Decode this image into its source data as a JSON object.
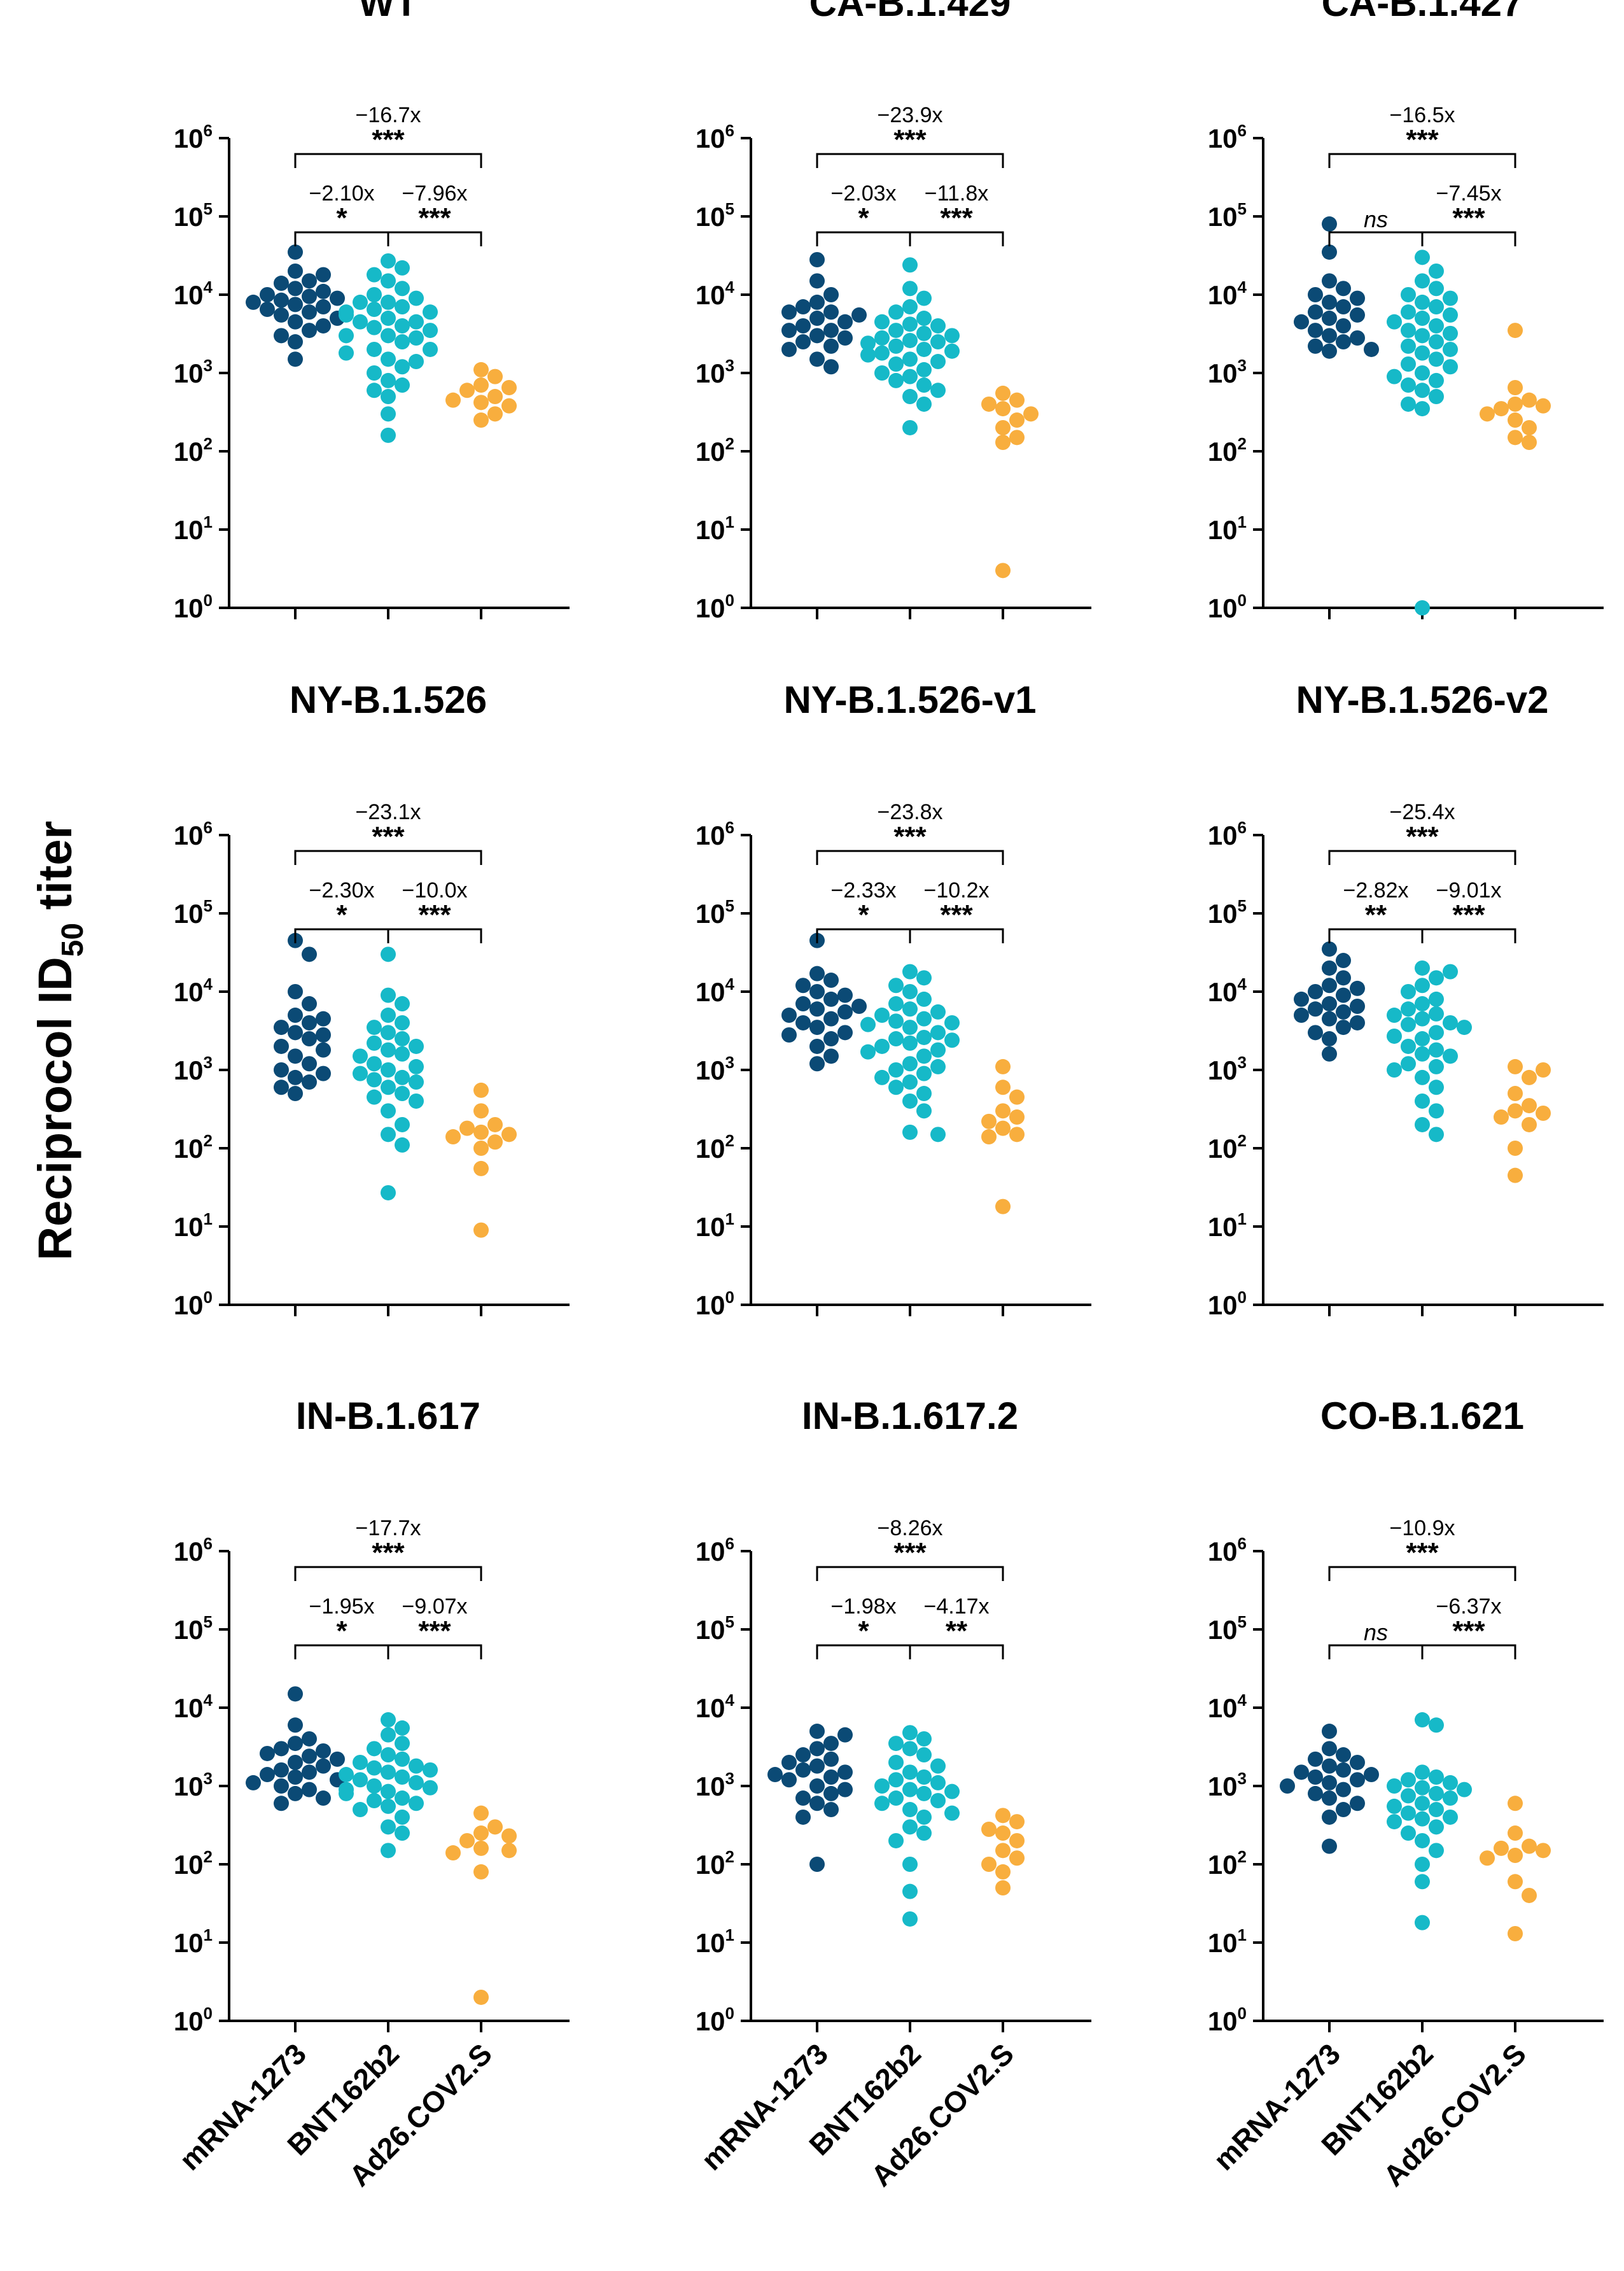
{
  "y_axis_title": "Reciprocol ID",
  "y_axis_title_sub": "50",
  "y_axis_title_tail": " titer",
  "groups": [
    "mRNA-1273",
    "BNT162b2",
    "Ad26.COV2.S"
  ],
  "group_colors": [
    "#0B4A75",
    "#16B9C8",
    "#F8AE3E"
  ],
  "tick_base": "10",
  "tick_exponents": [
    "0",
    "1",
    "2",
    "3",
    "4",
    "5",
    "6"
  ],
  "chart_data": [
    {
      "type": "scatter",
      "title": "WT",
      "ylim": [
        1,
        1000000
      ],
      "yscale": "log",
      "comparisons": [
        {
          "pair": [
            0,
            1
          ],
          "fold": "−2.10x",
          "sig": "*"
        },
        {
          "pair": [
            1,
            2
          ],
          "fold": "−7.96x",
          "sig": "***"
        },
        {
          "pair": [
            0,
            2
          ],
          "fold": "−16.7x",
          "sig": "***"
        }
      ],
      "series": [
        {
          "name": "mRNA-1273",
          "values": [
            35000,
            20000,
            18000,
            15000,
            14000,
            12000,
            11000,
            10000,
            9500,
            9000,
            8500,
            8000,
            7500,
            7000,
            6500,
            6000,
            5500,
            5000,
            4500,
            4000,
            3500,
            3000,
            2500,
            1500
          ]
        },
        {
          "name": "BNT162b2",
          "values": [
            27000,
            22000,
            18000,
            15000,
            12000,
            10000,
            9000,
            8000,
            7000,
            6500,
            6000,
            5500,
            5000,
            4500,
            4000,
            3800,
            3500,
            3000,
            2800,
            2500,
            2000,
            1800,
            1500,
            1200,
            1000,
            800,
            700,
            600,
            500,
            300,
            160,
            8000,
            6000,
            4500,
            3000,
            2000,
            1400
          ]
        },
        {
          "name": "Ad26.COV2.S",
          "values": [
            1100,
            900,
            700,
            650,
            600,
            500,
            450,
            420,
            380,
            300,
            250
          ]
        }
      ]
    },
    {
      "type": "scatter",
      "title": "CA-B.1.429",
      "ylim": [
        1,
        1000000
      ],
      "yscale": "log",
      "comparisons": [
        {
          "pair": [
            0,
            1
          ],
          "fold": "−2.03x",
          "sig": "*"
        },
        {
          "pair": [
            1,
            2
          ],
          "fold": "−11.8x",
          "sig": "***"
        },
        {
          "pair": [
            0,
            2
          ],
          "fold": "−23.9x",
          "sig": "***"
        }
      ],
      "series": [
        {
          "name": "mRNA-1273",
          "values": [
            28000,
            15000,
            10000,
            8000,
            7000,
            6000,
            5500,
            5000,
            4500,
            4000,
            3500,
            3000,
            2800,
            2500,
            2000,
            1500,
            1200,
            6000,
            3500,
            2200
          ]
        },
        {
          "name": "BNT162b2",
          "values": [
            24000,
            12000,
            9000,
            7000,
            6000,
            5000,
            4500,
            4000,
            3500,
            3000,
            2800,
            2500,
            2200,
            2000,
            1800,
            1500,
            1300,
            1100,
            900,
            800,
            700,
            600,
            500,
            400,
            200,
            3200,
            2600,
            1900,
            1400,
            1000,
            4200,
            2400,
            1700
          ]
        },
        {
          "name": "Ad26.COV2.S",
          "values": [
            550,
            450,
            400,
            350,
            300,
            250,
            200,
            150,
            130,
            3
          ]
        }
      ]
    },
    {
      "type": "scatter",
      "title": "CA-B.1.427",
      "ylim": [
        1,
        1000000
      ],
      "yscale": "log",
      "comparisons": [
        {
          "pair": [
            0,
            1
          ],
          "fold": "",
          "sig": "ns"
        },
        {
          "pair": [
            1,
            2
          ],
          "fold": "−7.45x",
          "sig": "***"
        },
        {
          "pair": [
            0,
            2
          ],
          "fold": "−16.5x",
          "sig": "***"
        }
      ],
      "series": [
        {
          "name": "mRNA-1273",
          "values": [
            80000,
            35000,
            15000,
            12000,
            10000,
            9000,
            8000,
            7000,
            6000,
            5500,
            5000,
            4500,
            4000,
            3500,
            3000,
            2800,
            2500,
            2200,
            2000,
            1900
          ]
        },
        {
          "name": "BNT162b2",
          "values": [
            30000,
            20000,
            15000,
            12000,
            10000,
            8000,
            7000,
            6000,
            5000,
            4500,
            4000,
            3500,
            3000,
            2500,
            2000,
            1800,
            1500,
            1200,
            1000,
            800,
            700,
            600,
            500,
            400,
            350,
            1,
            9000,
            5500,
            3200,
            2200,
            1300,
            900
          ]
        },
        {
          "name": "Ad26.COV2.S",
          "values": [
            3500,
            650,
            450,
            400,
            380,
            350,
            300,
            250,
            200,
            150,
            130
          ]
        }
      ]
    },
    {
      "type": "scatter",
      "title": "NY-B.1.526",
      "ylim": [
        1,
        1000000
      ],
      "yscale": "log",
      "comparisons": [
        {
          "pair": [
            0,
            1
          ],
          "fold": "−2.30x",
          "sig": "*"
        },
        {
          "pair": [
            1,
            2
          ],
          "fold": "−10.0x",
          "sig": "***"
        },
        {
          "pair": [
            0,
            2
          ],
          "fold": "−23.1x",
          "sig": "***"
        }
      ],
      "series": [
        {
          "name": "mRNA-1273",
          "values": [
            45000,
            30000,
            10000,
            7000,
            5000,
            4500,
            4000,
            3500,
            3000,
            2800,
            2500,
            2000,
            1800,
            1500,
            1200,
            1000,
            900,
            800,
            700,
            600,
            500
          ]
        },
        {
          "name": "BNT162b2",
          "values": [
            30000,
            9000,
            7000,
            5000,
            4000,
            3500,
            3000,
            2500,
            2000,
            1800,
            1500,
            1200,
            1000,
            900,
            800,
            700,
            600,
            500,
            400,
            300,
            200,
            150,
            110,
            27,
            2200,
            1600,
            1100,
            750,
            450
          ]
        },
        {
          "name": "Ad26.COV2.S",
          "values": [
            550,
            300,
            200,
            180,
            160,
            150,
            140,
            120,
            100,
            55,
            9
          ]
        }
      ]
    },
    {
      "type": "scatter",
      "title": "NY-B.1.526-v1",
      "ylim": [
        1,
        1000000
      ],
      "yscale": "log",
      "comparisons": [
        {
          "pair": [
            0,
            1
          ],
          "fold": "−2.33x",
          "sig": "*"
        },
        {
          "pair": [
            1,
            2
          ],
          "fold": "−10.2x",
          "sig": "***"
        },
        {
          "pair": [
            0,
            2
          ],
          "fold": "−23.8x",
          "sig": "***"
        }
      ],
      "series": [
        {
          "name": "mRNA-1273",
          "values": [
            45000,
            17000,
            14000,
            12000,
            10000,
            9000,
            8000,
            7000,
            6500,
            6000,
            5500,
            5000,
            4500,
            4000,
            3500,
            3000,
            2800,
            2500,
            2000,
            1500,
            1200
          ]
        },
        {
          "name": "BNT162b2",
          "values": [
            18000,
            15000,
            12000,
            10000,
            8000,
            7000,
            6000,
            5500,
            5000,
            4500,
            4000,
            3500,
            3000,
            2500,
            2200,
            2000,
            1800,
            1500,
            1200,
            1000,
            900,
            800,
            700,
            600,
            500,
            400,
            300,
            150,
            160,
            3800,
            2600,
            1700,
            1100,
            4200,
            2400
          ]
        },
        {
          "name": "Ad26.COV2.S",
          "values": [
            1100,
            600,
            450,
            300,
            250,
            220,
            180,
            150,
            140,
            18
          ]
        }
      ]
    },
    {
      "type": "scatter",
      "title": "NY-B.1.526-v2",
      "ylim": [
        1,
        1000000
      ],
      "yscale": "log",
      "comparisons": [
        {
          "pair": [
            0,
            1
          ],
          "fold": "−2.82x",
          "sig": "**"
        },
        {
          "pair": [
            1,
            2
          ],
          "fold": "−9.01x",
          "sig": "***"
        },
        {
          "pair": [
            0,
            2
          ],
          "fold": "−25.4x",
          "sig": "***"
        }
      ],
      "series": [
        {
          "name": "mRNA-1273",
          "values": [
            35000,
            25000,
            20000,
            15000,
            12000,
            11000,
            10000,
            9000,
            8000,
            7000,
            6500,
            6000,
            5500,
            5000,
            4500,
            4000,
            3500,
            3000,
            2500,
            1600
          ]
        },
        {
          "name": "BNT162b2",
          "values": [
            20000,
            18000,
            15000,
            12000,
            10000,
            8000,
            7000,
            6000,
            5000,
            4500,
            4000,
            3500,
            3000,
            2500,
            2000,
            1800,
            1500,
            1200,
            1000,
            800,
            600,
            400,
            300,
            200,
            150,
            3800,
            2700,
            1600,
            1100,
            5200
          ]
        },
        {
          "name": "Ad26.COV2.S",
          "values": [
            1100,
            1000,
            800,
            500,
            350,
            300,
            280,
            250,
            200,
            100,
            45
          ]
        }
      ]
    },
    {
      "type": "scatter",
      "title": "IN-B.1.617",
      "ylim": [
        1,
        1000000
      ],
      "yscale": "log",
      "comparisons": [
        {
          "pair": [
            0,
            1
          ],
          "fold": "−1.95x",
          "sig": "*"
        },
        {
          "pair": [
            1,
            2
          ],
          "fold": "−9.07x",
          "sig": "***"
        },
        {
          "pair": [
            0,
            2
          ],
          "fold": "−17.7x",
          "sig": "***"
        }
      ],
      "series": [
        {
          "name": "mRNA-1273",
          "values": [
            15000,
            6000,
            4000,
            3500,
            3000,
            2800,
            2600,
            2400,
            2200,
            2000,
            1800,
            1600,
            1500,
            1400,
            1300,
            1200,
            1100,
            1000,
            900,
            800,
            700,
            600
          ]
        },
        {
          "name": "BNT162b2",
          "values": [
            7000,
            5500,
            4500,
            3500,
            3000,
            2500,
            2200,
            2000,
            1800,
            1600,
            1400,
            1200,
            1100,
            1000,
            900,
            800,
            700,
            600,
            500,
            400,
            300,
            250,
            150,
            1300,
            1500,
            1700,
            950,
            850,
            650,
            550
          ]
        },
        {
          "name": "Ad26.COV2.S",
          "values": [
            450,
            300,
            250,
            230,
            200,
            160,
            150,
            140,
            80,
            2
          ]
        }
      ]
    },
    {
      "type": "scatter",
      "title": "IN-B.1.617.2",
      "ylim": [
        1,
        1000000
      ],
      "yscale": "log",
      "comparisons": [
        {
          "pair": [
            0,
            1
          ],
          "fold": "−1.98x",
          "sig": "*"
        },
        {
          "pair": [
            1,
            2
          ],
          "fold": "−4.17x",
          "sig": "**"
        },
        {
          "pair": [
            0,
            2
          ],
          "fold": "−8.26x",
          "sig": "***"
        }
      ],
      "series": [
        {
          "name": "mRNA-1273",
          "values": [
            5000,
            4500,
            3500,
            3000,
            2500,
            2200,
            2000,
            1800,
            1600,
            1500,
            1400,
            1300,
            1200,
            1000,
            900,
            800,
            700,
            600,
            500,
            400,
            100
          ]
        },
        {
          "name": "BNT162b2",
          "values": [
            4800,
            4000,
            3500,
            3000,
            2500,
            2000,
            1800,
            1500,
            1300,
            1100,
            1000,
            900,
            800,
            700,
            600,
            500,
            400,
            300,
            250,
            200,
            100,
            45,
            20,
            1200,
            850,
            650,
            450
          ]
        },
        {
          "name": "Ad26.COV2.S",
          "values": [
            420,
            350,
            280,
            250,
            200,
            150,
            120,
            100,
            80,
            50
          ]
        }
      ]
    },
    {
      "type": "scatter",
      "title": "CO-B.1.621",
      "ylim": [
        1,
        1000000
      ],
      "yscale": "log",
      "comparisons": [
        {
          "pair": [
            0,
            1
          ],
          "fold": "",
          "sig": "ns"
        },
        {
          "pair": [
            1,
            2
          ],
          "fold": "−6.37x",
          "sig": "***"
        },
        {
          "pair": [
            0,
            2
          ],
          "fold": "−10.9x",
          "sig": "***"
        }
      ],
      "series": [
        {
          "name": "mRNA-1273",
          "values": [
            5000,
            3000,
            2500,
            2200,
            2000,
            1800,
            1600,
            1500,
            1400,
            1300,
            1200,
            1100,
            1000,
            900,
            800,
            700,
            600,
            500,
            400,
            170
          ]
        },
        {
          "name": "BNT162b2",
          "values": [
            7000,
            6000,
            1500,
            1300,
            1200,
            1100,
            1000,
            900,
            800,
            700,
            600,
            500,
            450,
            400,
            350,
            300,
            250,
            200,
            150,
            100,
            60,
            18,
            950,
            750,
            550,
            380
          ]
        },
        {
          "name": "Ad26.COV2.S",
          "values": [
            600,
            250,
            170,
            160,
            150,
            130,
            120,
            60,
            40,
            13
          ]
        }
      ]
    }
  ]
}
